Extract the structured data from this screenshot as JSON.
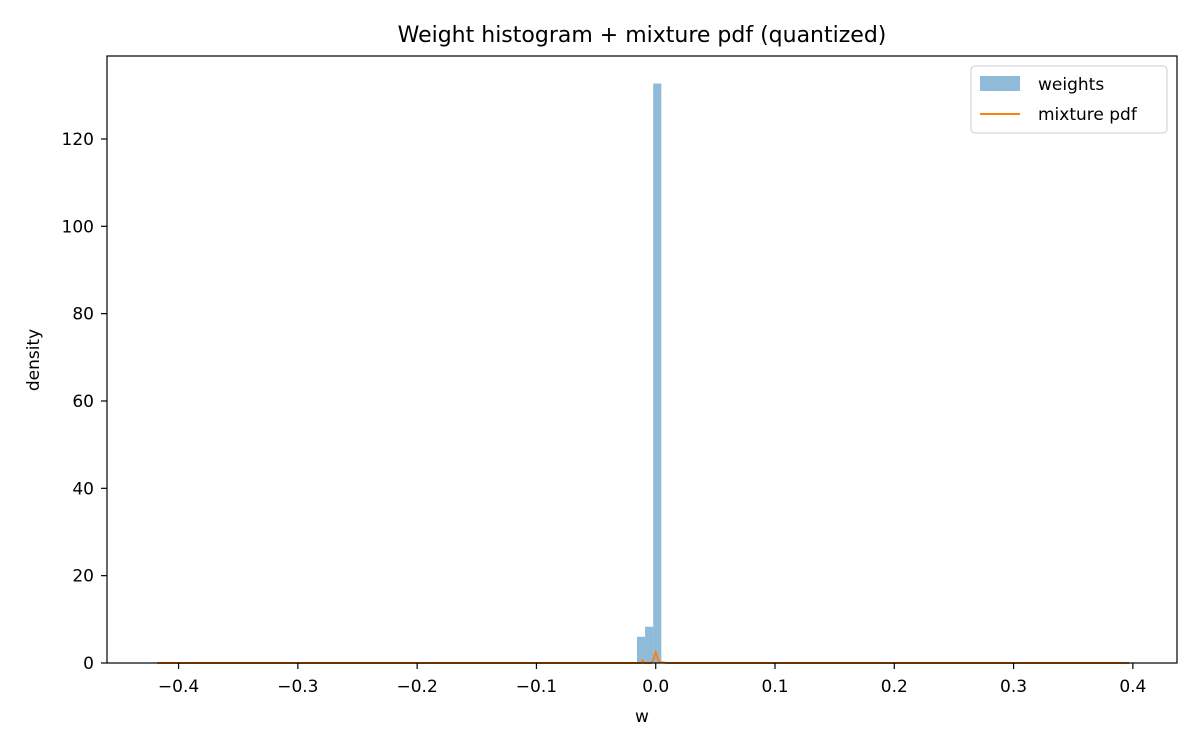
{
  "chart_data": {
    "type": "bar",
    "title": "Weight histogram + mixture pdf (quantized)",
    "xlabel": "w",
    "ylabel": "density",
    "xlim": [
      -0.46,
      0.437
    ],
    "ylim": [
      0,
      139
    ],
    "xticks": [
      -0.4,
      -0.3,
      -0.2,
      -0.1,
      0.0,
      0.1,
      0.2,
      0.3,
      0.4
    ],
    "xtick_labels": [
      "−0.4",
      "−0.3",
      "−0.2",
      "−0.1",
      "0.0",
      "0.1",
      "0.2",
      "0.3",
      "0.4"
    ],
    "yticks": [
      0,
      20,
      40,
      60,
      80,
      100,
      120
    ],
    "ytick_labels": [
      "0",
      "20",
      "40",
      "60",
      "80",
      "100",
      "120"
    ],
    "grid": false,
    "legend": {
      "position": "top-right",
      "entries": [
        {
          "label": "weights",
          "kind": "patch",
          "color": "#1f77b4",
          "alpha": 0.5
        },
        {
          "label": "mixture pdf",
          "kind": "line",
          "color": "#ff7f0e"
        }
      ]
    },
    "histogram": {
      "name": "weights",
      "color": "#1f77b4",
      "alpha": 0.5,
      "bins": [
        {
          "x0": -0.0157,
          "x1": -0.0089,
          "value": 6.0
        },
        {
          "x0": -0.0089,
          "x1": -0.0021,
          "value": 8.3
        },
        {
          "x0": -0.0021,
          "x1": 0.0047,
          "value": 132.7
        }
      ]
    },
    "pdf": {
      "name": "mixture pdf",
      "color": "#ff7f0e",
      "x": [
        -0.418,
        -0.05,
        -0.012,
        -0.011,
        -0.01,
        -0.004,
        -0.003,
        -0.002,
        -0.001,
        0.0,
        0.001,
        0.002,
        0.003,
        0.01,
        0.05,
        0.397
      ],
      "y": [
        0,
        0,
        0,
        0.5,
        0,
        0,
        0.3,
        0.8,
        1.6,
        2.4,
        1.6,
        0.8,
        0.2,
        0,
        0,
        0
      ]
    }
  }
}
